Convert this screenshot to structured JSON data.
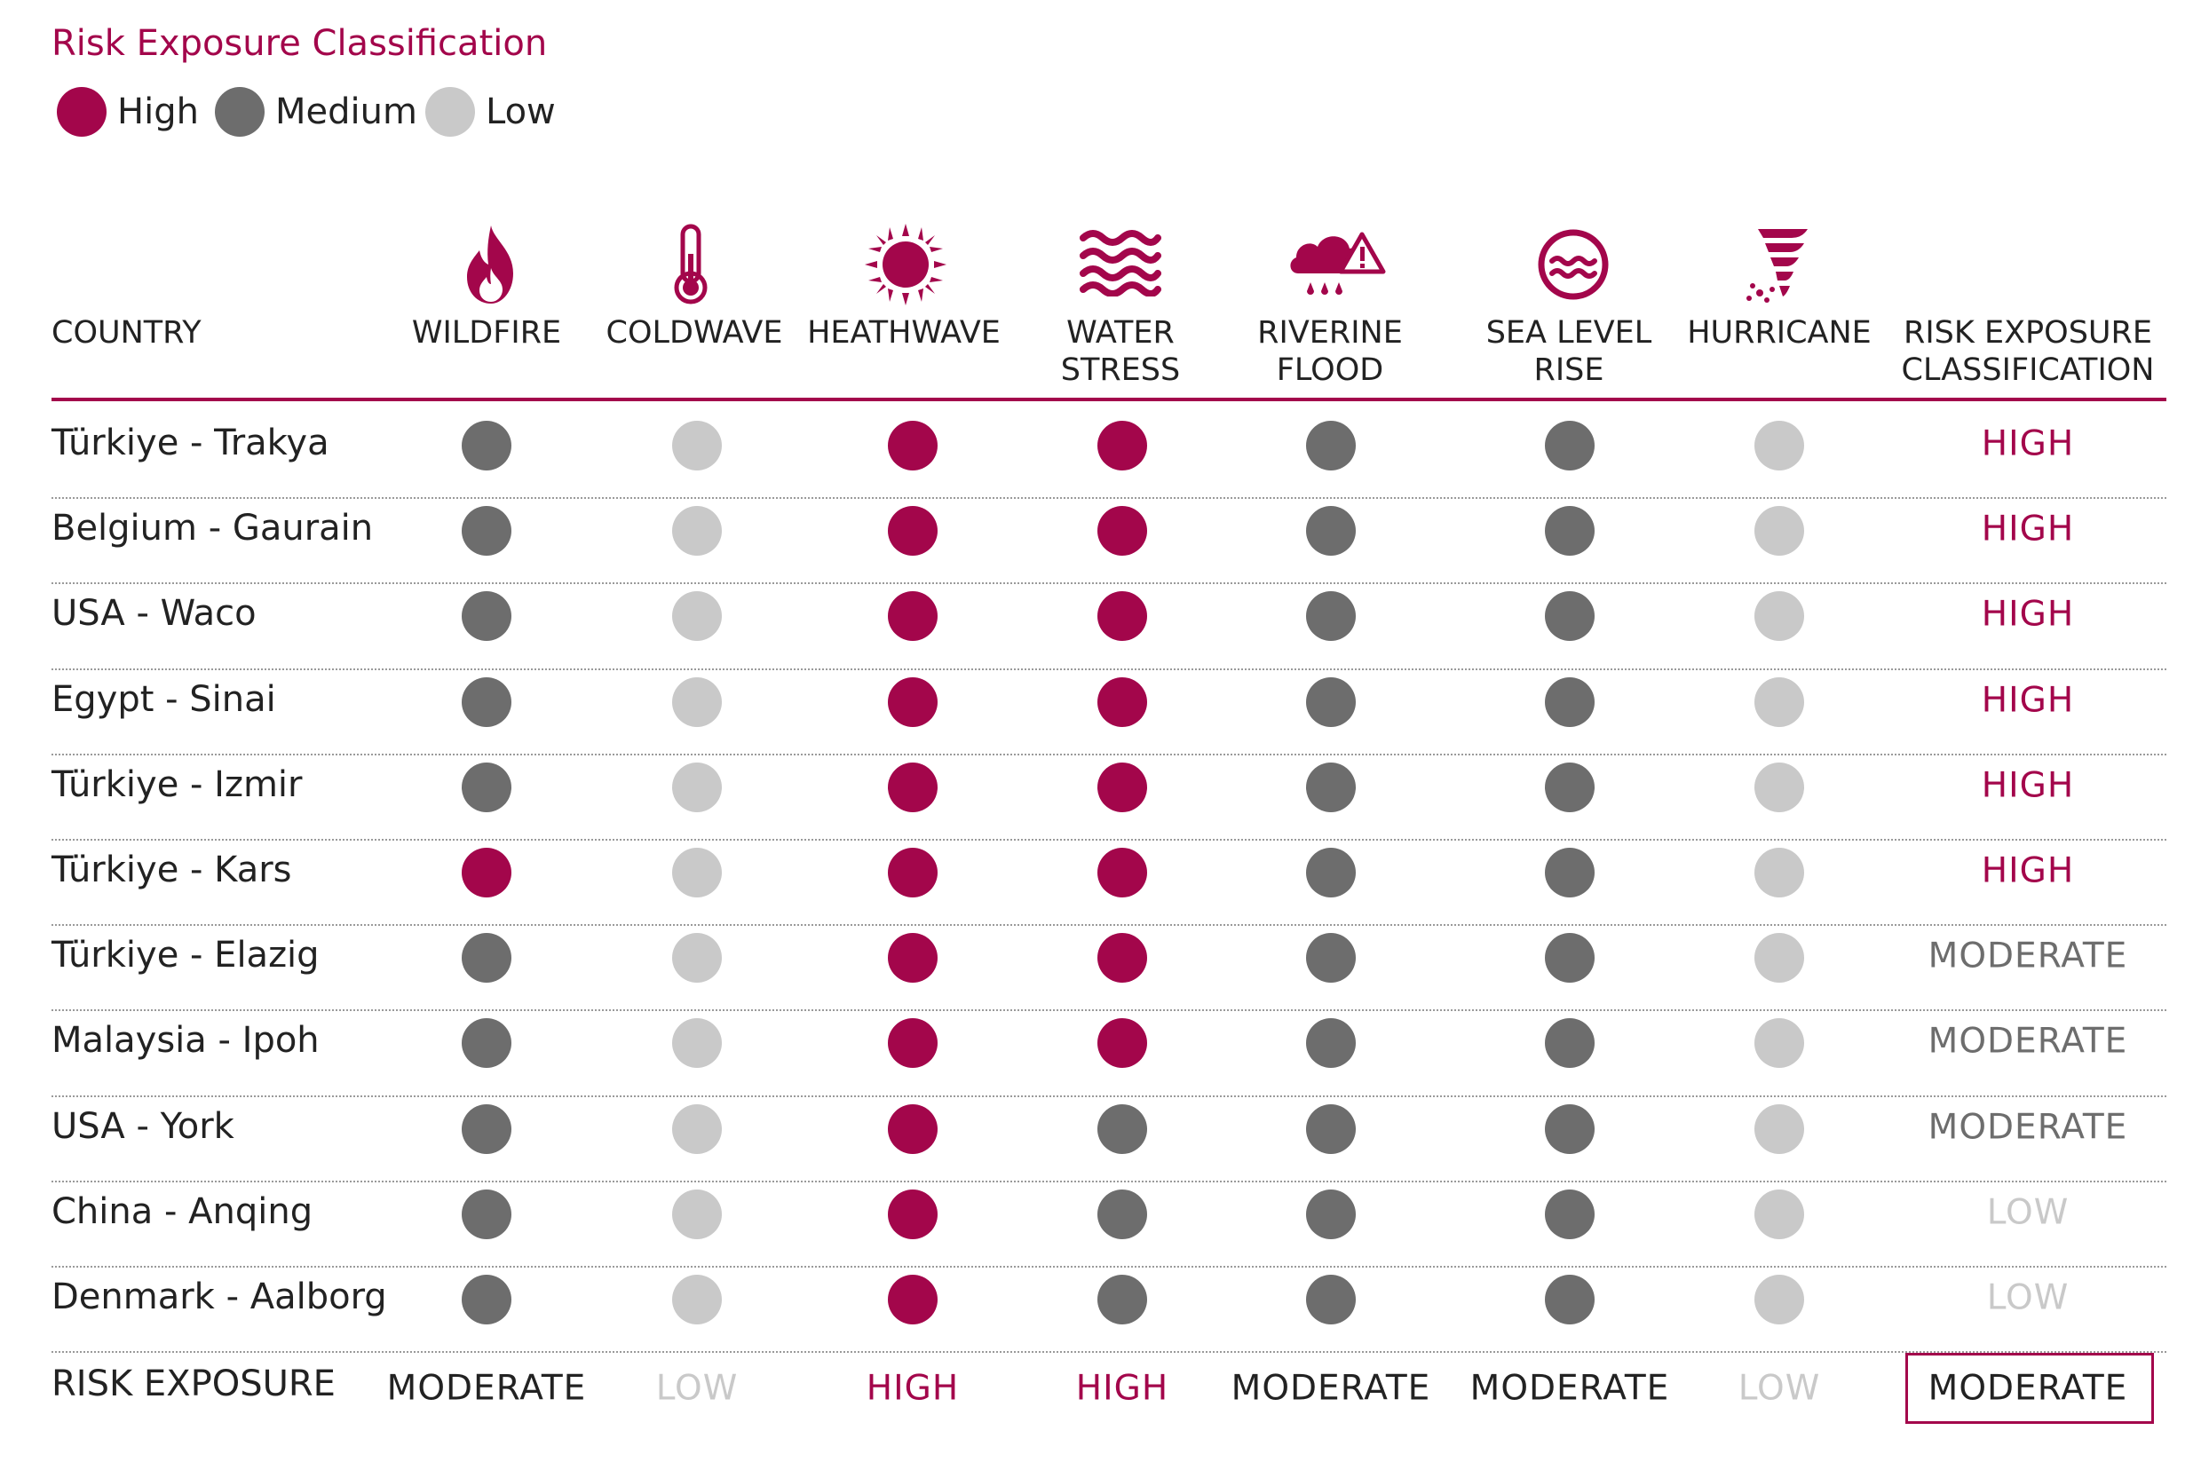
{
  "title": "Risk Exposure Classification",
  "legend": [
    {
      "label": "High",
      "color": "#a3064b"
    },
    {
      "label": "Medium",
      "color": "#6d6d6d"
    },
    {
      "label": "Low",
      "color": "#c9c9c9"
    }
  ],
  "colors": {
    "high": "#a3064b",
    "medium": "#6d6d6d",
    "low": "#c9c9c9",
    "text_moderate": "#6d6d6d",
    "text_low": "#c9c9c9",
    "text_dark": "#222222"
  },
  "chart_data": {
    "type": "table",
    "country_header": "COUNTRY",
    "columns": [
      {
        "label_lines": [
          "WILDFIRE"
        ],
        "icon": "fire-icon"
      },
      {
        "label_lines": [
          "COLDWAVE"
        ],
        "icon": "thermometer-icon"
      },
      {
        "label_lines": [
          "HEATHWAVE"
        ],
        "icon": "sun-icon"
      },
      {
        "label_lines": [
          "WATER",
          "STRESS"
        ],
        "icon": "waves-icon"
      },
      {
        "label_lines": [
          "RIVERINE",
          "FLOOD"
        ],
        "icon": "rain-cloud-warning-icon"
      },
      {
        "label_lines": [
          "SEA LEVEL",
          "RISE"
        ],
        "icon": "sea-level-icon"
      },
      {
        "label_lines": [
          "HURRICANE"
        ],
        "icon": "tornado-icon"
      }
    ],
    "classification_header_lines": [
      "RISK EXPOSURE",
      "CLASSIFICATION"
    ],
    "rows": [
      {
        "country": "Türkiye - Trakya",
        "levels": [
          "medium",
          "low",
          "high",
          "high",
          "medium",
          "medium",
          "low"
        ],
        "classification": "HIGH"
      },
      {
        "country": "Belgium - Gaurain",
        "levels": [
          "medium",
          "low",
          "high",
          "high",
          "medium",
          "medium",
          "low"
        ],
        "classification": "HIGH"
      },
      {
        "country": "USA - Waco",
        "levels": [
          "medium",
          "low",
          "high",
          "high",
          "medium",
          "medium",
          "low"
        ],
        "classification": "HIGH"
      },
      {
        "country": "Egypt - Sinai",
        "levels": [
          "medium",
          "low",
          "high",
          "high",
          "medium",
          "medium",
          "low"
        ],
        "classification": "HIGH"
      },
      {
        "country": "Türkiye - Izmir",
        "levels": [
          "medium",
          "low",
          "high",
          "high",
          "medium",
          "medium",
          "low"
        ],
        "classification": "HIGH"
      },
      {
        "country": "Türkiye - Kars",
        "levels": [
          "high",
          "low",
          "high",
          "high",
          "medium",
          "medium",
          "low"
        ],
        "classification": "HIGH"
      },
      {
        "country": "Türkiye - Elazig",
        "levels": [
          "medium",
          "low",
          "high",
          "high",
          "medium",
          "medium",
          "low"
        ],
        "classification": "MODERATE"
      },
      {
        "country": "Malaysia - Ipoh",
        "levels": [
          "medium",
          "low",
          "high",
          "high",
          "medium",
          "medium",
          "low"
        ],
        "classification": "MODERATE"
      },
      {
        "country": "USA - York",
        "levels": [
          "medium",
          "low",
          "high",
          "medium",
          "medium",
          "medium",
          "low"
        ],
        "classification": "MODERATE"
      },
      {
        "country": "China - Anqing",
        "levels": [
          "medium",
          "low",
          "high",
          "medium",
          "medium",
          "medium",
          "low"
        ],
        "classification": "LOW"
      },
      {
        "country": "Denmark - Aalborg",
        "levels": [
          "medium",
          "low",
          "high",
          "medium",
          "medium",
          "medium",
          "low"
        ],
        "classification": "LOW"
      }
    ],
    "footer": {
      "label": "RISK EXPOSURE",
      "values": [
        "MODERATE",
        "LOW",
        "HIGH",
        "HIGH",
        "MODERATE",
        "MODERATE",
        "LOW"
      ],
      "overall": "MODERATE"
    }
  }
}
